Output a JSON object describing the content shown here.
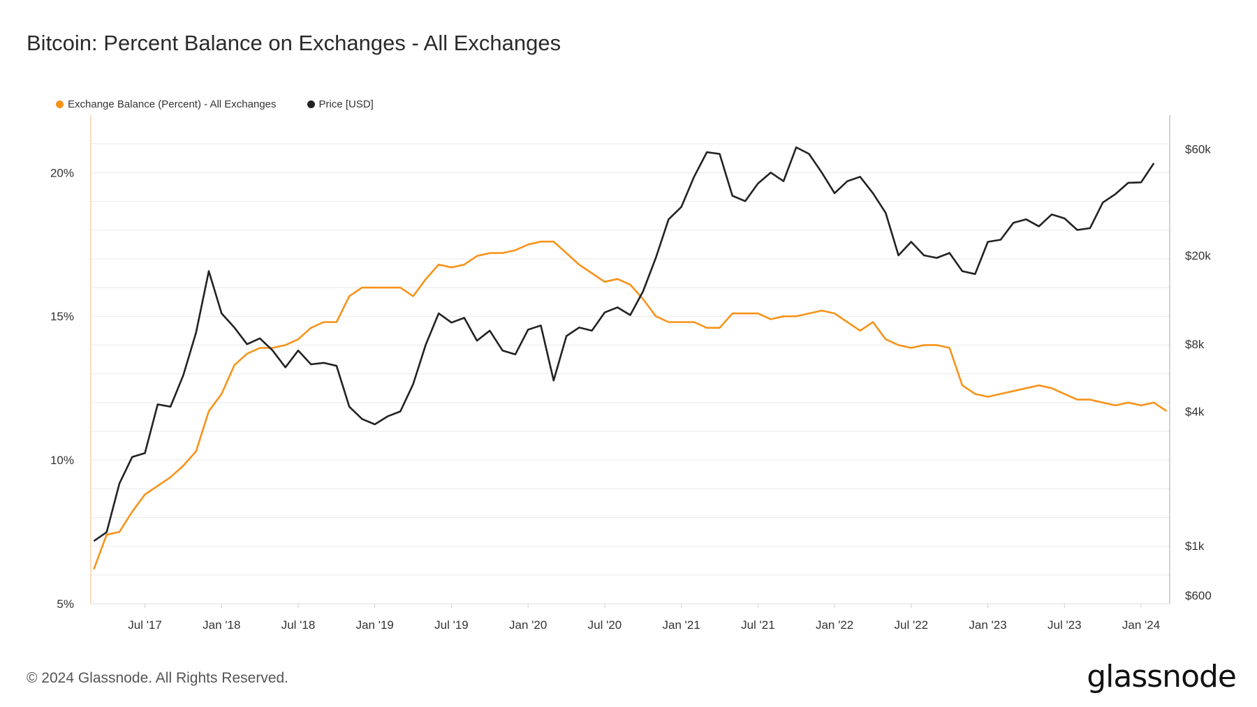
{
  "title": "Bitcoin: Percent Balance on Exchanges - All Exchanges",
  "footer": "© 2024 Glassnode. All Rights Reserved.",
  "logo_text": "glassnode",
  "colors": {
    "balance": "#f7931a",
    "price": "#222222",
    "grid": "#e9e9e9"
  },
  "chart_data": {
    "type": "line",
    "title": "Bitcoin: Percent Balance on Exchanges - All Exchanges",
    "x_ticks": [
      "Jul '17",
      "Jan '18",
      "Jul '18",
      "Jan '19",
      "Jul '19",
      "Jan '20",
      "Jul '20",
      "Jan '21",
      "Jul '21",
      "Jan '22",
      "Jul '22",
      "Jan '23",
      "Jul '23",
      "Jan '24"
    ],
    "y_left": {
      "ticks": [
        "5%",
        "10%",
        "15%",
        "20%"
      ],
      "range": [
        5,
        22
      ]
    },
    "y_right": {
      "ticks": [
        "$600",
        "$1k",
        "$4k",
        "$8k",
        "$20k",
        "$60k"
      ],
      "scale": "log"
    },
    "legend_position": "top-left",
    "grid": true,
    "series": [
      {
        "name": "Exchange Balance (Percent) - All Exchanges",
        "axis": "left",
        "points": [
          [
            "2017-03",
            6.2
          ],
          [
            "2017-04",
            7.4
          ],
          [
            "2017-05",
            7.5
          ],
          [
            "2017-06",
            8.2
          ],
          [
            "2017-07",
            8.8
          ],
          [
            "2017-08",
            9.1
          ],
          [
            "2017-09",
            9.4
          ],
          [
            "2017-10",
            9.8
          ],
          [
            "2017-11",
            10.3
          ],
          [
            "2017-12",
            11.7
          ],
          [
            "2018-01",
            12.3
          ],
          [
            "2018-02",
            13.3
          ],
          [
            "2018-03",
            13.7
          ],
          [
            "2018-04",
            13.9
          ],
          [
            "2018-05",
            13.9
          ],
          [
            "2018-06",
            14.0
          ],
          [
            "2018-07",
            14.2
          ],
          [
            "2018-08",
            14.6
          ],
          [
            "2018-09",
            14.8
          ],
          [
            "2018-10",
            14.8
          ],
          [
            "2018-11",
            15.7
          ],
          [
            "2018-12",
            16.0
          ],
          [
            "2019-01",
            16.0
          ],
          [
            "2019-02",
            16.0
          ],
          [
            "2019-03",
            16.0
          ],
          [
            "2019-04",
            15.7
          ],
          [
            "2019-05",
            16.3
          ],
          [
            "2019-06",
            16.8
          ],
          [
            "2019-07",
            16.7
          ],
          [
            "2019-08",
            16.8
          ],
          [
            "2019-09",
            17.1
          ],
          [
            "2019-10",
            17.2
          ],
          [
            "2019-11",
            17.2
          ],
          [
            "2019-12",
            17.3
          ],
          [
            "2020-01",
            17.5
          ],
          [
            "2020-02",
            17.6
          ],
          [
            "2020-03",
            17.6
          ],
          [
            "2020-04",
            17.2
          ],
          [
            "2020-05",
            16.8
          ],
          [
            "2020-06",
            16.5
          ],
          [
            "2020-07",
            16.2
          ],
          [
            "2020-08",
            16.3
          ],
          [
            "2020-09",
            16.1
          ],
          [
            "2020-10",
            15.6
          ],
          [
            "2020-11",
            15.0
          ],
          [
            "2020-12",
            14.8
          ],
          [
            "2021-01",
            14.8
          ],
          [
            "2021-02",
            14.8
          ],
          [
            "2021-03",
            14.6
          ],
          [
            "2021-04",
            14.6
          ],
          [
            "2021-05",
            15.1
          ],
          [
            "2021-06",
            15.1
          ],
          [
            "2021-07",
            15.1
          ],
          [
            "2021-08",
            14.9
          ],
          [
            "2021-09",
            15.0
          ],
          [
            "2021-10",
            15.0
          ],
          [
            "2021-11",
            15.1
          ],
          [
            "2021-12",
            15.2
          ],
          [
            "2022-01",
            15.1
          ],
          [
            "2022-02",
            14.8
          ],
          [
            "2022-03",
            14.5
          ],
          [
            "2022-04",
            14.8
          ],
          [
            "2022-05",
            14.2
          ],
          [
            "2022-06",
            14.0
          ],
          [
            "2022-07",
            13.9
          ],
          [
            "2022-08",
            14.0
          ],
          [
            "2022-09",
            14.0
          ],
          [
            "2022-10",
            13.9
          ],
          [
            "2022-11",
            12.6
          ],
          [
            "2022-12",
            12.3
          ],
          [
            "2023-01",
            12.2
          ],
          [
            "2023-02",
            12.3
          ],
          [
            "2023-03",
            12.4
          ],
          [
            "2023-04",
            12.5
          ],
          [
            "2023-05",
            12.6
          ],
          [
            "2023-06",
            12.5
          ],
          [
            "2023-07",
            12.3
          ],
          [
            "2023-08",
            12.1
          ],
          [
            "2023-09",
            12.1
          ],
          [
            "2023-10",
            12.0
          ],
          [
            "2023-11",
            11.9
          ],
          [
            "2023-12",
            12.0
          ],
          [
            "2024-01",
            11.9
          ],
          [
            "2024-02",
            12.0
          ],
          [
            "2024-03",
            11.7
          ]
        ]
      },
      {
        "name": "Price [USD]",
        "axis": "right",
        "points": [
          [
            "2017-03",
            1050
          ],
          [
            "2017-04",
            1150
          ],
          [
            "2017-05",
            1900
          ],
          [
            "2017-06",
            2500
          ],
          [
            "2017-07",
            2600
          ],
          [
            "2017-08",
            4300
          ],
          [
            "2017-09",
            4200
          ],
          [
            "2017-10",
            5800
          ],
          [
            "2017-11",
            9000
          ],
          [
            "2017-12",
            17000
          ],
          [
            "2018-01",
            11000
          ],
          [
            "2018-02",
            9500
          ],
          [
            "2018-03",
            8000
          ],
          [
            "2018-04",
            8500
          ],
          [
            "2018-05",
            7500
          ],
          [
            "2018-06",
            6300
          ],
          [
            "2018-07",
            7500
          ],
          [
            "2018-08",
            6500
          ],
          [
            "2018-09",
            6600
          ],
          [
            "2018-10",
            6400
          ],
          [
            "2018-11",
            4200
          ],
          [
            "2018-12",
            3700
          ],
          [
            "2019-01",
            3500
          ],
          [
            "2019-02",
            3800
          ],
          [
            "2019-03",
            4000
          ],
          [
            "2019-04",
            5300
          ],
          [
            "2019-05",
            8000
          ],
          [
            "2019-06",
            11000
          ],
          [
            "2019-07",
            10000
          ],
          [
            "2019-08",
            10500
          ],
          [
            "2019-09",
            8300
          ],
          [
            "2019-10",
            9200
          ],
          [
            "2019-11",
            7500
          ],
          [
            "2019-12",
            7200
          ],
          [
            "2020-01",
            9300
          ],
          [
            "2020-02",
            9700
          ],
          [
            "2020-03",
            5500
          ],
          [
            "2020-04",
            8700
          ],
          [
            "2020-05",
            9500
          ],
          [
            "2020-06",
            9200
          ],
          [
            "2020-07",
            11100
          ],
          [
            "2020-08",
            11700
          ],
          [
            "2020-09",
            10800
          ],
          [
            "2020-10",
            13800
          ],
          [
            "2020-11",
            19500
          ],
          [
            "2020-12",
            29000
          ],
          [
            "2021-01",
            33000
          ],
          [
            "2021-02",
            45000
          ],
          [
            "2021-03",
            58000
          ],
          [
            "2021-04",
            57000
          ],
          [
            "2021-05",
            37000
          ],
          [
            "2021-06",
            35000
          ],
          [
            "2021-07",
            42000
          ],
          [
            "2021-08",
            47000
          ],
          [
            "2021-09",
            43000
          ],
          [
            "2021-10",
            61000
          ],
          [
            "2021-11",
            57000
          ],
          [
            "2021-12",
            47000
          ],
          [
            "2022-01",
            38000
          ],
          [
            "2022-02",
            43000
          ],
          [
            "2022-03",
            45000
          ],
          [
            "2022-04",
            38000
          ],
          [
            "2022-05",
            31000
          ],
          [
            "2022-06",
            20000
          ],
          [
            "2022-07",
            23000
          ],
          [
            "2022-08",
            20000
          ],
          [
            "2022-09",
            19500
          ],
          [
            "2022-10",
            20500
          ],
          [
            "2022-11",
            17000
          ],
          [
            "2022-12",
            16500
          ],
          [
            "2023-01",
            23000
          ],
          [
            "2023-02",
            23500
          ],
          [
            "2023-03",
            28000
          ],
          [
            "2023-04",
            29000
          ],
          [
            "2023-05",
            27000
          ],
          [
            "2023-06",
            30500
          ],
          [
            "2023-07",
            29300
          ],
          [
            "2023-08",
            26000
          ],
          [
            "2023-09",
            26500
          ],
          [
            "2023-10",
            34500
          ],
          [
            "2023-11",
            37700
          ],
          [
            "2023-12",
            42300
          ],
          [
            "2024-01",
            42500
          ],
          [
            "2024-02",
            51800
          ]
        ]
      }
    ]
  }
}
